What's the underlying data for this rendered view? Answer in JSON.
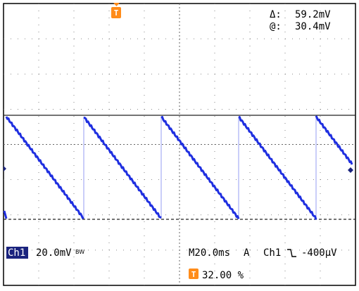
{
  "cursor": {
    "delta_label": "Δ:",
    "delta_value": "59.2mV",
    "at_label": "@:",
    "at_value": "30.4mV"
  },
  "trigger": {
    "marker_letter": "T",
    "level_letter": "T",
    "position_text": "32.00 %"
  },
  "channel": {
    "name": "Ch1",
    "scale": "20.0mV",
    "bw_symbol": "BW"
  },
  "timebase": {
    "text": "M20.0ms",
    "mode": "A",
    "source": "Ch1",
    "slope_symbol": "⌊",
    "level": "-400μV"
  },
  "colors": {
    "trace": "#1f2fe0",
    "trace_light": "#7c86f0",
    "trigger_marker": "#ff8c1a",
    "channel_box": "#1a237e",
    "grid": "#555555"
  }
}
